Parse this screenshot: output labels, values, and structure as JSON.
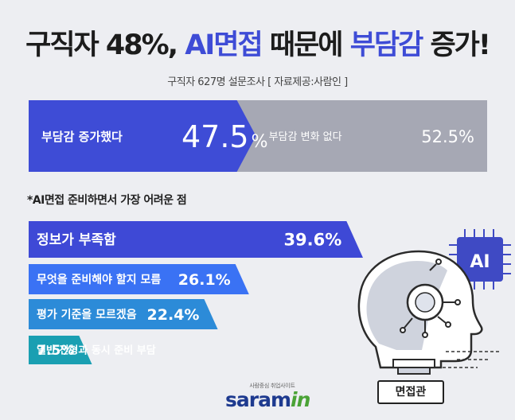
{
  "title": {
    "part1": "구직자 48%, ",
    "part2": "AI면접",
    "part3": " 때문에 ",
    "part4": "부담감",
    "part5": " 증가!"
  },
  "subtitle": "구직자 627명 설문조사 [ 자료제공:사람인 ]",
  "chart_data": [
    {
      "type": "bar",
      "categories": [
        "부담감 증가했다",
        "부담감 변화 없다"
      ],
      "values": [
        47.5,
        52.5
      ],
      "labels": [
        "47.5",
        "52.5%"
      ],
      "unit": "%"
    },
    {
      "type": "bar",
      "title": "*AI면접 준비하면서 가장 어려운 점",
      "categories": [
        "정보가 부족함",
        "무엇을 준비해야 할지 모름",
        "평가 기준을 모르겠음",
        "일반 전형과 동시 준비 부담"
      ],
      "values": [
        39.6,
        26.1,
        22.4,
        7.5
      ],
      "labels": [
        "39.6%",
        "26.1%",
        "22.4%",
        "7.5%"
      ],
      "colors": [
        "#3e49d6",
        "#3a72f4",
        "#2c8bd8",
        "#1a9fb2"
      ]
    }
  ],
  "robot": {
    "chip_label": "AI",
    "caption": "면접관"
  },
  "logo": {
    "tagline": "사람중심 취업사이트",
    "brand": "saram",
    "brand_suffix": "in"
  },
  "colors": {
    "accent": "#3e4cd6",
    "gray_bar": "#a6a8b4",
    "background": "#edeef2"
  }
}
